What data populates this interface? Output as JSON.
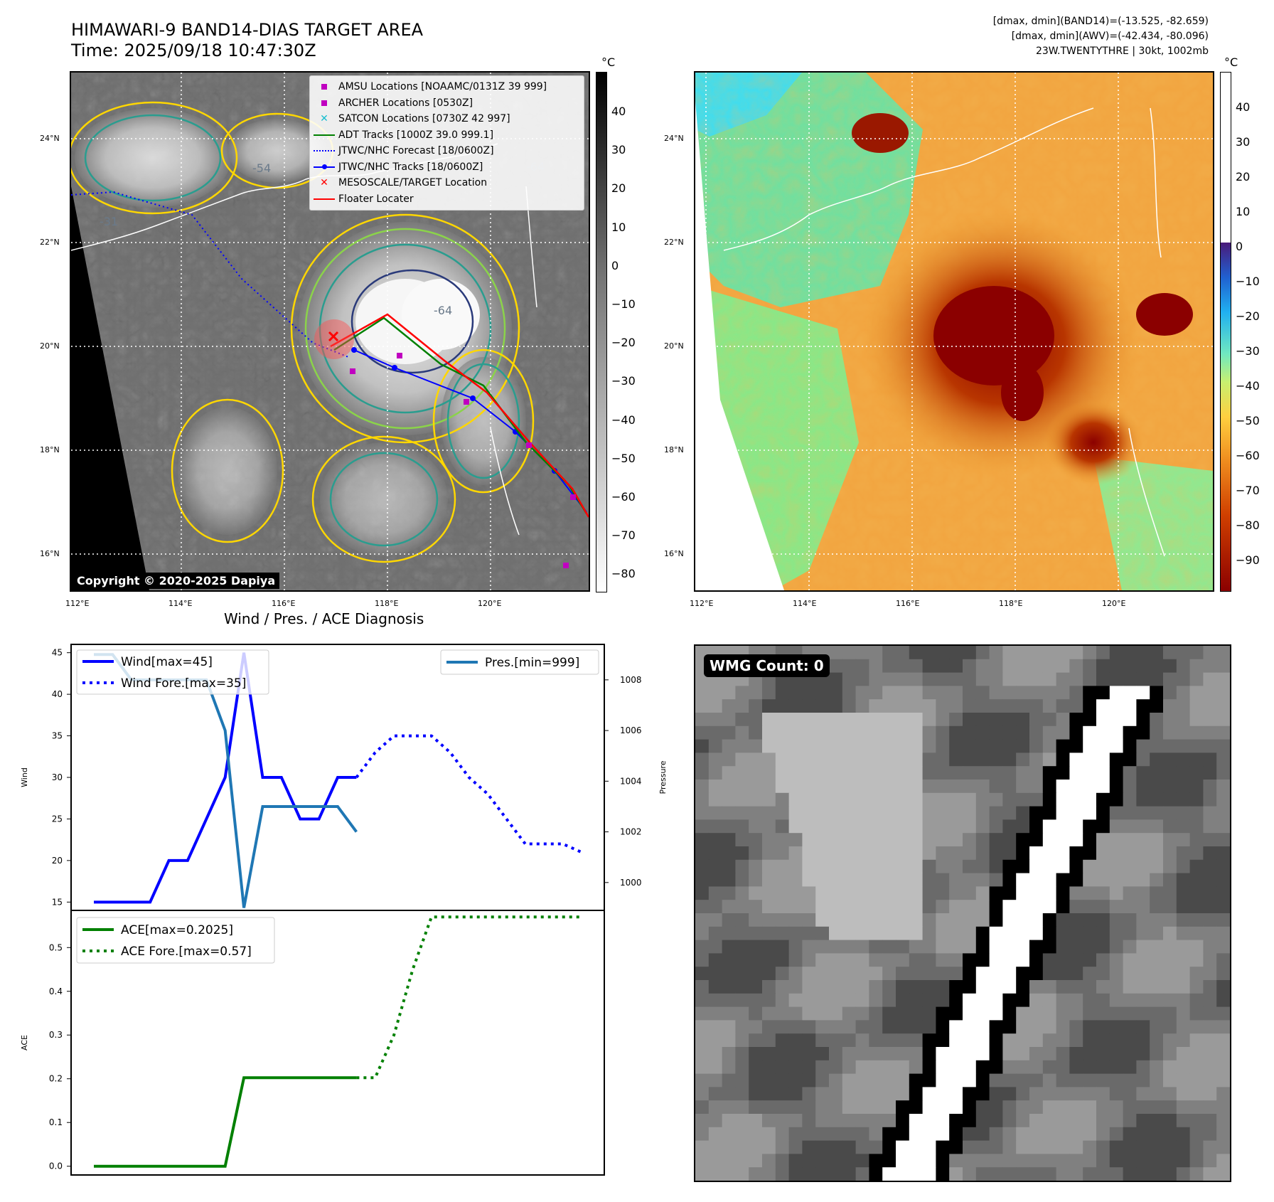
{
  "panel_ir": {
    "title_line1": "HIMAWARI-9 BAND14-DIAS TARGET AREA",
    "title_line2": "Time: 2025/09/18 10:47:30Z",
    "colorbar_unit": "°C",
    "colorbar_ticks": [
      "40",
      "30",
      "20",
      "10",
      "0",
      "−10",
      "−20",
      "−30",
      "−40",
      "−50",
      "−60",
      "−70",
      "−80"
    ],
    "copyright": "Copyright © 2020-2025 Dapiya",
    "legend": [
      {
        "label": "AMSU Locations [NOAAMC/0131Z 39 999]",
        "color": "#c000c0",
        "marker": "square"
      },
      {
        "label": "ARCHER Locations [0530Z]",
        "color": "#c000c0",
        "marker": "square"
      },
      {
        "label": "SATCON Locations [0730Z 42 997]",
        "color": "#17becf",
        "marker": "x"
      },
      {
        "label": "ADT Tracks [1000Z 39.0 999.1]",
        "color": "#008000",
        "marker": "line"
      },
      {
        "label": "JTWC/NHC Forecast [18/0600Z]",
        "color": "#0000ff",
        "marker": "dotted"
      },
      {
        "label": "JTWC/NHC Tracks [18/0600Z]",
        "color": "#0000ff",
        "marker": "line-dot"
      },
      {
        "label": "MESOSCALE/TARGET Location",
        "color": "#ff0000",
        "marker": "x"
      },
      {
        "label": "Floater Locater",
        "color": "#ff0000",
        "marker": "line"
      }
    ],
    "contour_labels": [
      "-64",
      "-54",
      "-64",
      "-31"
    ]
  },
  "panel_awv": {
    "info_line1": "[dmax, dmin](BAND14)=(-13.525, -82.659)",
    "info_line2": "[dmax, dmin](AWV)=(-42.434, -80.096)",
    "info_line3": "23W.TWENTYTHRE | 30kt, 1002mb",
    "colorbar_unit": "°C",
    "colorbar_ticks": [
      "40",
      "30",
      "20",
      "10",
      "0",
      "−10",
      "−20",
      "−30",
      "−40",
      "−50",
      "−60",
      "−70",
      "−80",
      "−90"
    ]
  },
  "map_axes": {
    "lon_labels": [
      "112°E",
      "114°E",
      "116°E",
      "118°E",
      "120°E"
    ],
    "lat_labels": [
      "24°N",
      "22°N",
      "20°N",
      "18°N",
      "16°N"
    ]
  },
  "panel_wmg": {
    "badge": "WMG Count: 0"
  },
  "colors": {
    "wind": "#0000ff",
    "pressure": "#1f77b4",
    "ace": "#008000",
    "track_red": "#ff0000",
    "coast": "#ffffff",
    "contour_yellow": "#ffd700",
    "contour_teal": "#2a9d8f"
  },
  "chart_data": [
    {
      "type": "line",
      "title": "Wind / Pres. / ACE Diagnosis",
      "ylabel": "Wind",
      "y2label": "Pressure",
      "ylim": [
        14,
        46
      ],
      "y2lim": [
        998.9,
        1009.4
      ],
      "yticks": [
        15,
        20,
        25,
        30,
        35,
        40,
        45
      ],
      "y2ticks": [
        1000,
        1002,
        1004,
        1006,
        1008
      ],
      "series": [
        {
          "name": "Wind[max=45]",
          "axis": "left",
          "style": "solid",
          "x": [
            0,
            1,
            2,
            3,
            4,
            5,
            6,
            7,
            8,
            9,
            10,
            11,
            12,
            13,
            14
          ],
          "y": [
            15,
            15,
            15,
            15,
            20,
            20,
            25,
            30,
            45,
            30,
            30,
            25,
            25,
            30,
            30
          ]
        },
        {
          "name": "Wind Fore.[max=35]",
          "axis": "left",
          "style": "dotted",
          "x": [
            14,
            15,
            16,
            17,
            18,
            19,
            20,
            21,
            22,
            23,
            24,
            25,
            26
          ],
          "y": [
            30,
            33,
            35,
            35,
            35,
            33,
            30,
            28,
            25,
            22,
            22,
            22,
            21
          ]
        },
        {
          "name": "Pres.[min=999]",
          "axis": "right",
          "style": "solid",
          "x": [
            0,
            1,
            2,
            3,
            4,
            5,
            6,
            7,
            8,
            9,
            10,
            11,
            12,
            13,
            14
          ],
          "y": [
            1009,
            1009,
            1008,
            1008,
            1008,
            1008,
            1008,
            1006,
            999,
            1003,
            1003,
            1003,
            1003,
            1003,
            1002
          ]
        }
      ]
    },
    {
      "type": "line",
      "ylabel": "ACE",
      "ylim": [
        -0.02,
        0.585
      ],
      "yticks": [
        0.0,
        0.1,
        0.2,
        0.3,
        0.4,
        0.5
      ],
      "yticklabels": [
        "0.0",
        "0.1",
        "0.2",
        "0.3",
        "0.4",
        "0.5"
      ],
      "series": [
        {
          "name": "ACE[max=0.2025]",
          "style": "solid",
          "x": [
            0,
            1,
            2,
            3,
            4,
            5,
            6,
            7,
            8,
            9,
            10,
            11,
            12,
            13,
            14
          ],
          "y": [
            0,
            0,
            0,
            0,
            0,
            0,
            0,
            0,
            0.2025,
            0.2025,
            0.2025,
            0.2025,
            0.2025,
            0.2025,
            0.2025
          ]
        },
        {
          "name": "ACE Fore.[max=0.57]",
          "style": "dotted",
          "x": [
            14,
            15,
            16,
            17,
            18,
            19,
            20,
            21,
            22,
            23,
            24,
            25,
            26
          ],
          "y": [
            0.2025,
            0.2025,
            0.3,
            0.45,
            0.57,
            0.57,
            0.57,
            0.57,
            0.57,
            0.57,
            0.57,
            0.57,
            0.57
          ]
        }
      ]
    }
  ]
}
